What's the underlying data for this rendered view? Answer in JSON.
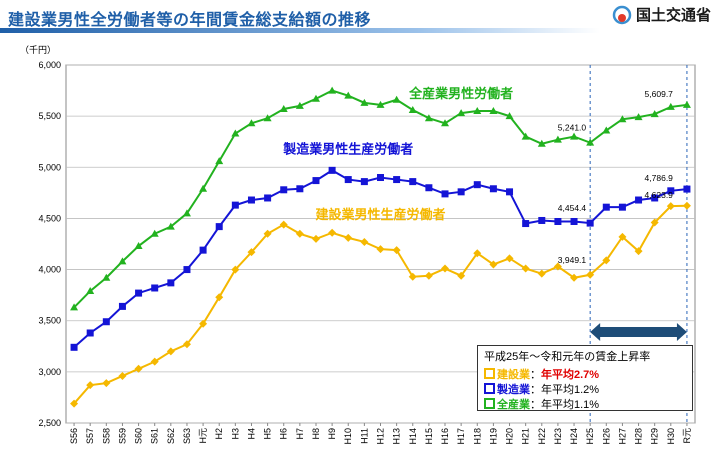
{
  "header": {
    "title": "建設業男性全労働者等の年間賃金総支給額の推移",
    "ministry": "国土交通省"
  },
  "colors": {
    "all": "#22b21f",
    "mfg": "#1414d6",
    "con": "#f5b800",
    "grid": "#bdbdbd",
    "arrow": "#1e4d78"
  },
  "chart_data": {
    "type": "line",
    "ylabel": "（千円）",
    "ylim": [
      2500,
      6000
    ],
    "yticks": [
      "2,500",
      "3,000",
      "3,500",
      "4,000",
      "4,500",
      "5,000",
      "5,500",
      "6,000"
    ],
    "ytick_values": [
      2500,
      3000,
      3500,
      4000,
      4500,
      5000,
      5500,
      6000
    ],
    "categories": [
      "S56",
      "S57",
      "S58",
      "S59",
      "S60",
      "S61",
      "S62",
      "S63",
      "H元",
      "H2",
      "H3",
      "H4",
      "H5",
      "H6",
      "H7",
      "H8",
      "H9",
      "H10",
      "H11",
      "H12",
      "H13",
      "H14",
      "H15",
      "H16",
      "H17",
      "H18",
      "H19",
      "H20",
      "H21",
      "H22",
      "H23",
      "H24",
      "H25",
      "H26",
      "H27",
      "H28",
      "H29",
      "H30",
      "R元"
    ],
    "series": [
      {
        "key": "all",
        "name": "全産業男性労働者",
        "values": [
          3630,
          3790,
          3920,
          4080,
          4230,
          4350,
          4420,
          4550,
          4790,
          5060,
          5330,
          5430,
          5480,
          5570,
          5600,
          5670,
          5750,
          5700,
          5630,
          5610,
          5660,
          5560,
          5480,
          5430,
          5530,
          5550,
          5550,
          5500,
          5300,
          5230,
          5270,
          5300,
          5241.0,
          5360,
          5470,
          5490,
          5520,
          5590,
          5609.7
        ]
      },
      {
        "key": "mfg",
        "name": "製造業男性生産労働者",
        "values": [
          3240,
          3380,
          3490,
          3640,
          3770,
          3820,
          3870,
          4000,
          4190,
          4420,
          4630,
          4680,
          4700,
          4780,
          4790,
          4870,
          4970,
          4880,
          4860,
          4900,
          4880,
          4860,
          4800,
          4740,
          4760,
          4830,
          4790,
          4760,
          4450,
          4480,
          4470,
          4470,
          4454.4,
          4610,
          4610,
          4680,
          4700,
          4770,
          4786.9
        ]
      },
      {
        "key": "con",
        "name": "建設業男性生産労働者",
        "values": [
          2690,
          2870,
          2890,
          2960,
          3030,
          3100,
          3200,
          3270,
          3470,
          3730,
          4000,
          4170,
          4350,
          4440,
          4350,
          4300,
          4360,
          4310,
          4270,
          4200,
          4190,
          3930,
          3940,
          4010,
          3940,
          4160,
          4050,
          4110,
          4010,
          3960,
          4030,
          3920,
          3949.1,
          4090,
          4320,
          4180,
          4460,
          4620,
          4623.9
        ]
      }
    ],
    "data_labels": [
      {
        "series": "all",
        "index": 32,
        "text": "5,241.0"
      },
      {
        "series": "all",
        "index": 38,
        "text": "5,609.7"
      },
      {
        "series": "mfg",
        "index": 32,
        "text": "4,454.4"
      },
      {
        "series": "mfg",
        "index": 38,
        "text": "4,786.9"
      },
      {
        "series": "con",
        "index": 32,
        "text": "3,949.1"
      },
      {
        "series": "con",
        "index": 38,
        "text": "4,623.9"
      }
    ],
    "legend": {
      "title": "平成25年～令和元年の賃金上昇率",
      "rows": [
        {
          "key": "con",
          "name": "建設業",
          "sep": "：",
          "text": "年平均2.7%"
        },
        {
          "key": "mfg",
          "name": "製造業",
          "sep": "：",
          "text": "年平均1.2%"
        },
        {
          "key": "all",
          "name": "全産業",
          "sep": "：",
          "text": "年平均1.1%"
        }
      ]
    }
  }
}
